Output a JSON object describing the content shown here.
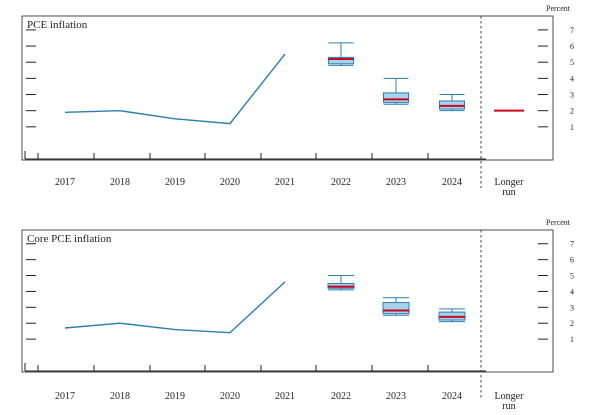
{
  "colors": {
    "line": "#2a7fb0",
    "box_fill": "#a6d3ee",
    "box_stroke": "#2a7fb0",
    "median": "#d0021b",
    "axis": "#222222",
    "divider": "#444444"
  },
  "chart_data": [
    {
      "type": "line",
      "title": "PCE inflation",
      "ylabel": "Percent",
      "ylim": [
        0,
        7
      ],
      "yticks": [
        "1",
        "2",
        "3",
        "4",
        "5",
        "6",
        "7"
      ],
      "categories": [
        "2017",
        "2018",
        "2019",
        "2020",
        "2021",
        "2022",
        "2023",
        "2024",
        "Longer run"
      ],
      "history": {
        "x": [
          "2017",
          "2018",
          "2019",
          "2020",
          "2021"
        ],
        "values": [
          1.9,
          2.0,
          1.5,
          1.2,
          5.5
        ]
      },
      "projections": [
        {
          "x": "2022",
          "min": 4.8,
          "q1": 4.9,
          "median": 5.2,
          "q3": 5.3,
          "max": 6.2
        },
        {
          "x": "2023",
          "min": 2.4,
          "q1": 2.5,
          "median": 2.7,
          "q3": 3.1,
          "max": 4.0
        },
        {
          "x": "2024",
          "min": 2.0,
          "q1": 2.1,
          "median": 2.3,
          "q3": 2.6,
          "max": 3.0
        }
      ],
      "longer_run": {
        "x": "Longer run",
        "value": 2.0
      }
    },
    {
      "type": "line",
      "title": "Core PCE inflation",
      "ylabel": "Percent",
      "ylim": [
        0,
        7
      ],
      "yticks": [
        "1",
        "2",
        "3",
        "4",
        "5",
        "6",
        "7"
      ],
      "categories": [
        "2017",
        "2018",
        "2019",
        "2020",
        "2021",
        "2022",
        "2023",
        "2024",
        "Longer run"
      ],
      "history": {
        "x": [
          "2017",
          "2018",
          "2019",
          "2020",
          "2021"
        ],
        "values": [
          1.7,
          2.0,
          1.6,
          1.4,
          4.6
        ]
      },
      "projections": [
        {
          "x": "2022",
          "min": 4.1,
          "q1": 4.2,
          "median": 4.3,
          "q3": 4.5,
          "max": 5.0
        },
        {
          "x": "2023",
          "min": 2.5,
          "q1": 2.6,
          "median": 2.8,
          "q3": 3.3,
          "max": 3.6
        },
        {
          "x": "2024",
          "min": 2.1,
          "q1": 2.2,
          "median": 2.4,
          "q3": 2.7,
          "max": 2.9
        }
      ]
    }
  ]
}
